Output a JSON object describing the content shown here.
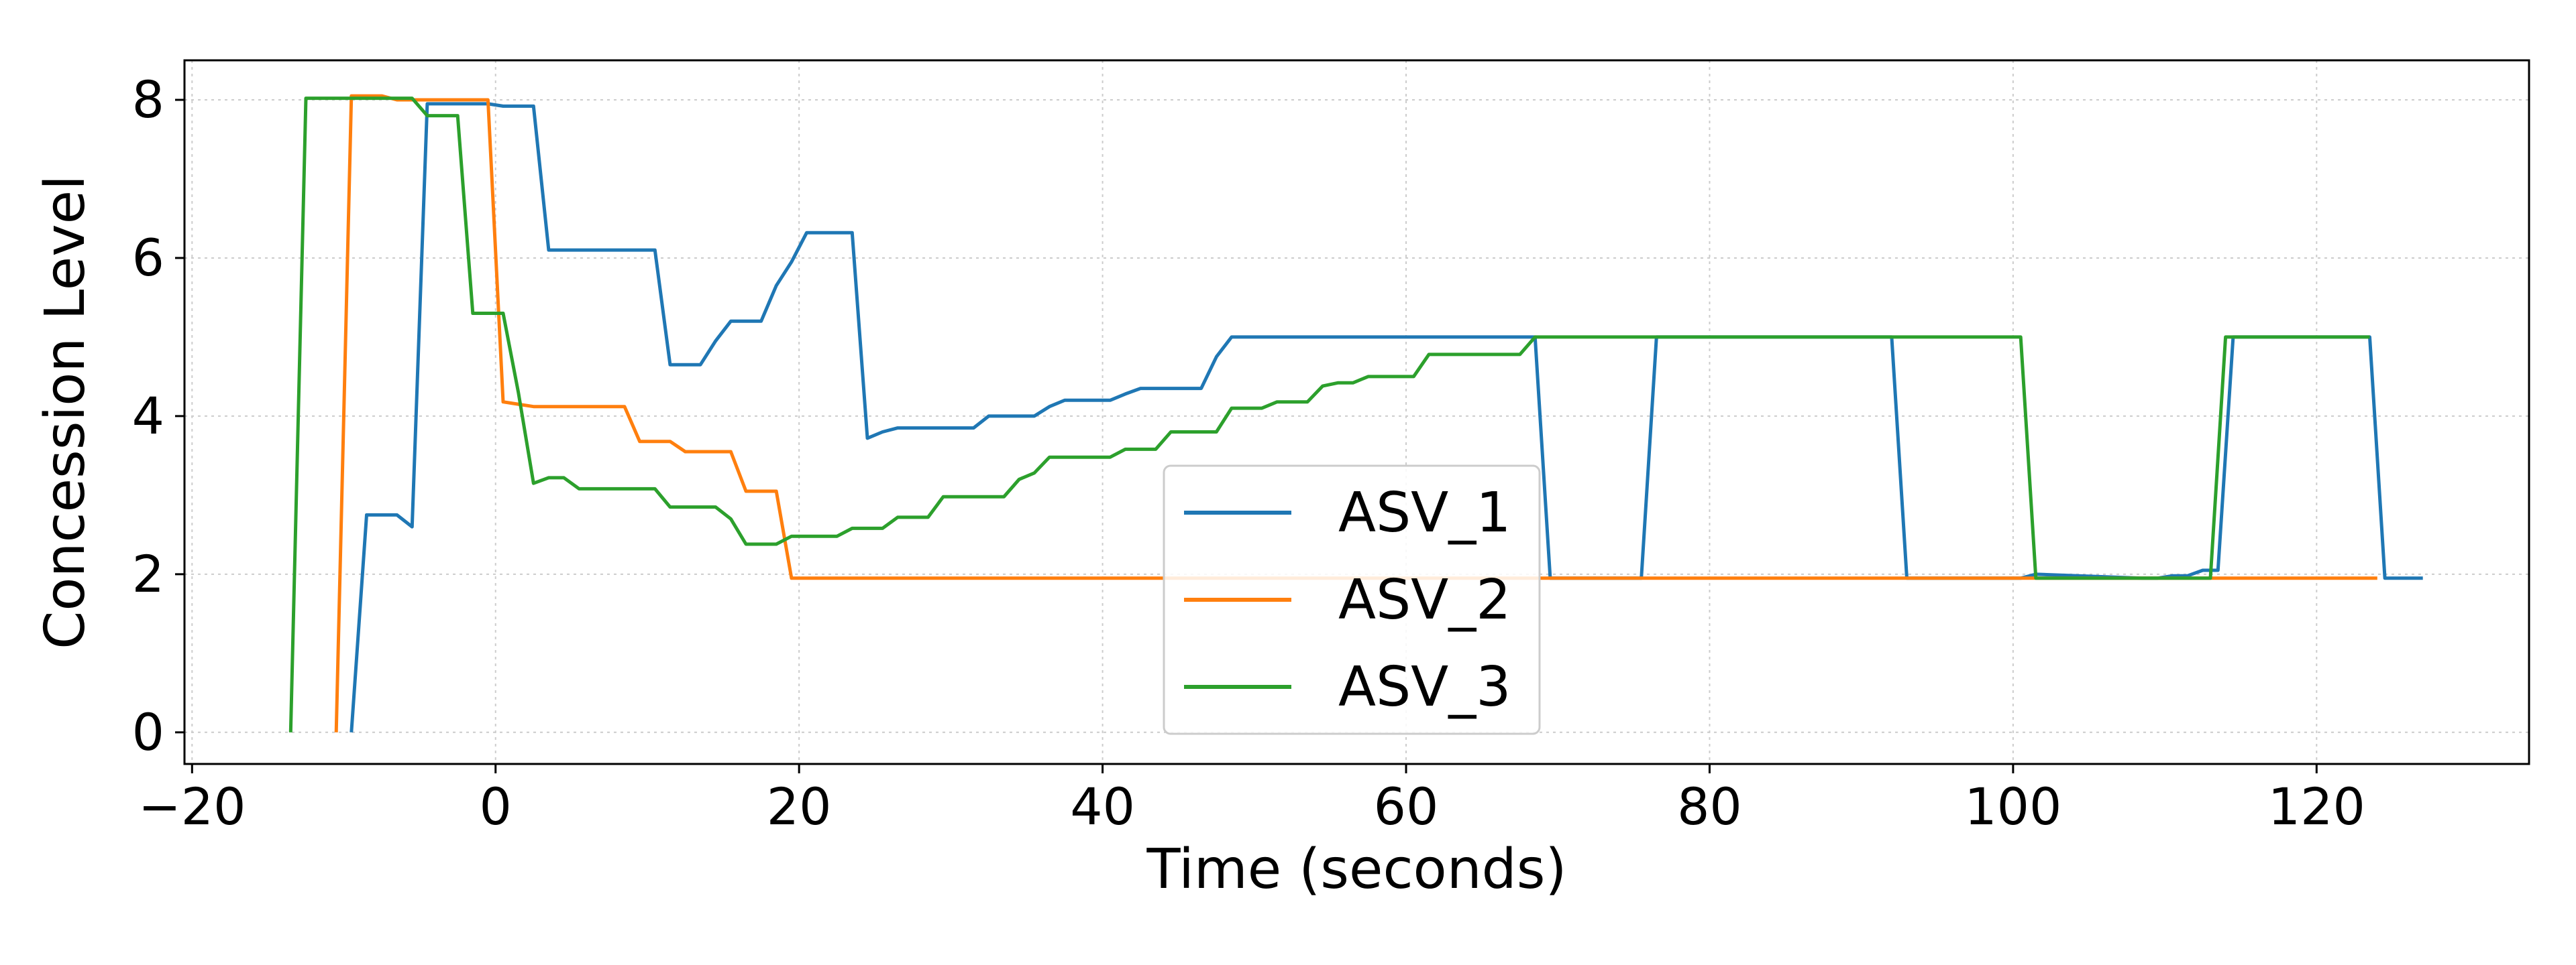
{
  "chart_data": {
    "type": "line",
    "title": "",
    "xlabel": "Time (seconds)",
    "ylabel": "Concession Level",
    "xlim": [
      -20.5,
      134
    ],
    "ylim": [
      -0.4,
      8.5
    ],
    "xticks": [
      -20,
      0,
      20,
      40,
      60,
      80,
      100,
      120
    ],
    "yticks": [
      0,
      2,
      4,
      6,
      8
    ],
    "grid": true,
    "legend_position": "lower-center",
    "series": [
      {
        "name": "ASV_1",
        "color": "#1f77b4",
        "x": [
          -9.5,
          -8.5,
          -6.5,
          -5.5,
          -4.5,
          -2.5,
          -0.5,
          0.5,
          2.5,
          3.5,
          5.5,
          8.5,
          10.5,
          11.5,
          13.5,
          14.5,
          15.5,
          17.5,
          18.5,
          19.5,
          20.5,
          21.5,
          23.5,
          24.5,
          25.5,
          26.5,
          28.5,
          31.5,
          32.5,
          35.5,
          36.5,
          37.5,
          40.5,
          41.5,
          42.5,
          46.5,
          47.5,
          48.5,
          50.5,
          68.5,
          69.5,
          75.5,
          76.5,
          92.0,
          93.0,
          100.5,
          101.5,
          108.5,
          109.5,
          110.5,
          111.5,
          112.5,
          113.5,
          114.5,
          123.5,
          124.5,
          127.0
        ],
        "y": [
          0,
          2.75,
          2.75,
          2.6,
          7.95,
          7.95,
          7.95,
          7.92,
          7.92,
          6.1,
          6.1,
          6.1,
          6.1,
          4.65,
          4.65,
          4.95,
          5.2,
          5.2,
          5.65,
          5.95,
          6.32,
          6.32,
          6.32,
          3.72,
          3.8,
          3.85,
          3.85,
          3.85,
          4.0,
          4.0,
          4.12,
          4.2,
          4.2,
          4.28,
          4.35,
          4.35,
          4.75,
          5.0,
          5.0,
          5.0,
          1.95,
          1.95,
          5.0,
          5.0,
          1.95,
          1.95,
          2.0,
          1.95,
          1.95,
          1.98,
          1.98,
          2.05,
          2.05,
          5.0,
          5.0,
          1.95,
          1.95
        ]
      },
      {
        "name": "ASV_2",
        "color": "#ff7f0e",
        "x": [
          -10.5,
          -9.5,
          -7.5,
          -6.5,
          -5.5,
          -3.5,
          -0.5,
          0.5,
          2.5,
          8.5,
          9.5,
          11.5,
          12.5,
          13.5,
          15.5,
          16.5,
          17.5,
          18.5,
          19.5,
          124.0
        ],
        "y": [
          0,
          8.05,
          8.05,
          8.0,
          8.0,
          8.0,
          8.0,
          4.18,
          4.12,
          4.12,
          3.68,
          3.68,
          3.55,
          3.55,
          3.55,
          3.05,
          3.05,
          3.05,
          1.95,
          1.95
        ]
      },
      {
        "name": "ASV_3",
        "color": "#2ca02c",
        "x": [
          -13.5,
          -12.5,
          -5.5,
          -4.5,
          -2.5,
          -1.5,
          0.5,
          1.5,
          2.5,
          3.5,
          4.5,
          5.5,
          10.5,
          11.5,
          14.5,
          15.5,
          16.5,
          18.5,
          19.5,
          22.5,
          23.5,
          25.5,
          26.5,
          28.5,
          29.5,
          33.5,
          34.5,
          35.5,
          36.5,
          38.5,
          40.5,
          41.5,
          43.5,
          44.5,
          47.5,
          48.5,
          50.5,
          51.5,
          53.5,
          54.5,
          55.5,
          56.5,
          57.5,
          60.5,
          61.5,
          67.5,
          68.5,
          100.5,
          101.5,
          113.0,
          114.0,
          123.5
        ],
        "y": [
          0,
          8.02,
          8.02,
          7.8,
          7.8,
          5.3,
          5.3,
          4.3,
          3.15,
          3.22,
          3.22,
          3.08,
          3.08,
          2.85,
          2.85,
          2.7,
          2.38,
          2.38,
          2.48,
          2.48,
          2.58,
          2.58,
          2.72,
          2.72,
          2.98,
          2.98,
          3.2,
          3.28,
          3.48,
          3.48,
          3.48,
          3.58,
          3.58,
          3.8,
          3.8,
          4.1,
          4.1,
          4.18,
          4.18,
          4.38,
          4.42,
          4.42,
          4.5,
          4.5,
          4.78,
          4.78,
          5.0,
          5.0,
          1.95,
          1.95,
          5.0,
          5.0
        ]
      }
    ]
  }
}
